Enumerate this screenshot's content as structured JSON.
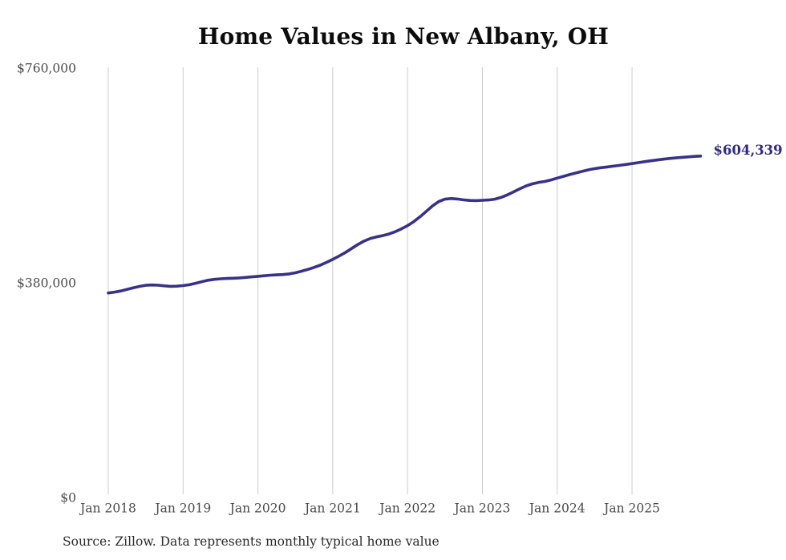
{
  "source_note": "Source: Zillow. Data represents monthly typical home value",
  "colors": {
    "line": "#37318c",
    "end_label": "#2e2a88",
    "grid": "#cccccc",
    "tick_text": "#4a4a4a",
    "title_text": "#0c0c0c",
    "source_text": "#2b2b2b",
    "background": "#ffffff"
  },
  "chart_data": {
    "type": "line",
    "title": "Home Values in New Albany, OH",
    "xlabel": "",
    "ylabel": "",
    "ylim": [
      0,
      760000
    ],
    "grid": "vertical-only",
    "legend": "none",
    "frequency": "monthly",
    "x_monthly_start": "2018-01",
    "x_monthly_end": "2025-12",
    "x_tick_labels": [
      "Jan 2018",
      "Jan 2019",
      "Jan 2020",
      "Jan 2021",
      "Jan 2022",
      "Jan 2023",
      "Jan 2024",
      "Jan 2025"
    ],
    "y_ticks": [
      {
        "label": "$0",
        "value": 0
      },
      {
        "label": "$380,000",
        "value": 380000
      },
      {
        "label": "$760,000",
        "value": 760000
      }
    ],
    "end_label": "$604,339",
    "end_value": 604339,
    "series": [
      {
        "name": "Typical home value",
        "values": [
          362000,
          363600,
          365600,
          368200,
          371000,
          373600,
          375600,
          376200,
          375700,
          374600,
          373700,
          374100,
          375100,
          376600,
          379100,
          382000,
          384500,
          386100,
          387100,
          387700,
          388100,
          388600,
          389500,
          390500,
          391500,
          392500,
          393400,
          394000,
          394600,
          395700,
          397700,
          400600,
          403700,
          407200,
          411200,
          416100,
          421500,
          427200,
          433500,
          440500,
          447600,
          453800,
          458300,
          461200,
          463500,
          466300,
          470300,
          475400,
          481200,
          488300,
          496900,
          506500,
          516100,
          523800,
          528000,
          529100,
          528300,
          526800,
          525700,
          525500,
          526000,
          526600,
          528100,
          531200,
          535600,
          540900,
          546400,
          551400,
          555100,
          557600,
          559300,
          562000,
          565300,
          568500,
          571500,
          574400,
          577300,
          579900,
          582000,
          583700,
          585100,
          586400,
          587800,
          589400,
          591000,
          592700,
          594400,
          595900,
          597400,
          598800,
          600000,
          601100,
          602100,
          602900,
          603700,
          604339
        ]
      }
    ]
  }
}
